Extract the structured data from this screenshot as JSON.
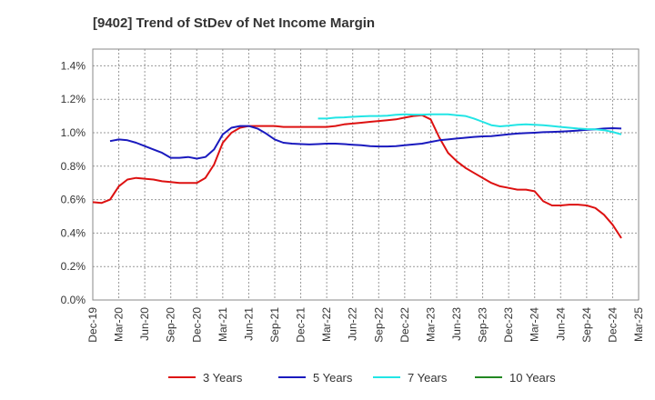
{
  "chart_data": {
    "type": "line",
    "title": "[9402]  Trend of StDev of Net Income Margin",
    "xlabel": "",
    "ylabel": "",
    "x_ticks": [
      "Dec-19",
      "Mar-20",
      "Jun-20",
      "Sep-20",
      "Dec-20",
      "Mar-21",
      "Jun-21",
      "Sep-21",
      "Dec-21",
      "Mar-22",
      "Jun-22",
      "Sep-22",
      "Dec-22",
      "Mar-23",
      "Jun-23",
      "Sep-23",
      "Dec-23",
      "Mar-24",
      "Jun-24",
      "Sep-24",
      "Dec-24",
      "Mar-25"
    ],
    "y_ticks": [
      "0.0%",
      "0.2%",
      "0.4%",
      "0.6%",
      "0.8%",
      "1.0%",
      "1.2%",
      "1.4%"
    ],
    "ylim": [
      0,
      1.5
    ],
    "grid": true,
    "legend_position": "bottom",
    "series": [
      {
        "name": "3 Years",
        "color": "#dd1111",
        "points": [
          [
            0,
            0.585
          ],
          [
            1,
            0.58
          ],
          [
            2,
            0.6
          ],
          [
            3,
            0.68
          ],
          [
            4,
            0.72
          ],
          [
            5,
            0.73
          ],
          [
            6,
            0.725
          ],
          [
            7,
            0.72
          ],
          [
            8,
            0.71
          ],
          [
            9,
            0.705
          ],
          [
            10,
            0.7
          ],
          [
            11,
            0.7
          ],
          [
            12,
            0.7
          ],
          [
            13,
            0.73
          ],
          [
            14,
            0.81
          ],
          [
            15,
            0.94
          ],
          [
            16,
            1.0
          ],
          [
            17,
            1.03
          ],
          [
            18,
            1.04
          ],
          [
            19,
            1.04
          ],
          [
            20,
            1.04
          ],
          [
            21,
            1.04
          ],
          [
            22,
            1.035
          ],
          [
            23,
            1.035
          ],
          [
            24,
            1.035
          ],
          [
            25,
            1.035
          ],
          [
            26,
            1.035
          ],
          [
            27,
            1.035
          ],
          [
            28,
            1.04
          ],
          [
            29,
            1.05
          ],
          [
            30,
            1.055
          ],
          [
            31,
            1.06
          ],
          [
            32,
            1.065
          ],
          [
            33,
            1.07
          ],
          [
            34,
            1.075
          ],
          [
            35,
            1.08
          ],
          [
            36,
            1.09
          ],
          [
            37,
            1.1
          ],
          [
            38,
            1.105
          ],
          [
            39,
            1.08
          ],
          [
            40,
            0.97
          ],
          [
            41,
            0.88
          ],
          [
            42,
            0.83
          ],
          [
            43,
            0.79
          ],
          [
            44,
            0.76
          ],
          [
            45,
            0.73
          ],
          [
            46,
            0.7
          ],
          [
            47,
            0.68
          ],
          [
            48,
            0.67
          ],
          [
            49,
            0.66
          ],
          [
            50,
            0.66
          ],
          [
            51,
            0.65
          ],
          [
            52,
            0.59
          ],
          [
            53,
            0.565
          ],
          [
            54,
            0.565
          ],
          [
            55,
            0.57
          ],
          [
            56,
            0.57
          ],
          [
            57,
            0.565
          ],
          [
            58,
            0.55
          ],
          [
            59,
            0.51
          ],
          [
            60,
            0.45
          ],
          [
            61,
            0.37
          ]
        ]
      },
      {
        "name": "5 Years",
        "color": "#1a1abe",
        "points": [
          [
            2,
            0.95
          ],
          [
            3,
            0.96
          ],
          [
            4,
            0.955
          ],
          [
            5,
            0.94
          ],
          [
            6,
            0.92
          ],
          [
            7,
            0.9
          ],
          [
            8,
            0.88
          ],
          [
            9,
            0.85
          ],
          [
            10,
            0.85
          ],
          [
            11,
            0.855
          ],
          [
            12,
            0.845
          ],
          [
            13,
            0.855
          ],
          [
            14,
            0.9
          ],
          [
            15,
            0.99
          ],
          [
            16,
            1.03
          ],
          [
            17,
            1.04
          ],
          [
            18,
            1.04
          ],
          [
            19,
            1.025
          ],
          [
            20,
            0.995
          ],
          [
            21,
            0.96
          ],
          [
            22,
            0.94
          ],
          [
            23,
            0.935
          ],
          [
            24,
            0.932
          ],
          [
            25,
            0.93
          ],
          [
            26,
            0.932
          ],
          [
            27,
            0.935
          ],
          [
            28,
            0.935
          ],
          [
            29,
            0.932
          ],
          [
            30,
            0.928
          ],
          [
            31,
            0.925
          ],
          [
            32,
            0.92
          ],
          [
            33,
            0.918
          ],
          [
            34,
            0.918
          ],
          [
            35,
            0.92
          ],
          [
            36,
            0.925
          ],
          [
            37,
            0.93
          ],
          [
            38,
            0.935
          ],
          [
            39,
            0.945
          ],
          [
            40,
            0.955
          ],
          [
            41,
            0.96
          ],
          [
            42,
            0.965
          ],
          [
            43,
            0.97
          ],
          [
            44,
            0.975
          ],
          [
            45,
            0.978
          ],
          [
            46,
            0.98
          ],
          [
            47,
            0.985
          ],
          [
            48,
            0.99
          ],
          [
            49,
            0.995
          ],
          [
            50,
            0.998
          ],
          [
            51,
            1.0
          ],
          [
            52,
            1.003
          ],
          [
            53,
            1.005
          ],
          [
            54,
            1.007
          ],
          [
            55,
            1.01
          ],
          [
            56,
            1.013
          ],
          [
            57,
            1.018
          ],
          [
            58,
            1.02
          ],
          [
            59,
            1.025
          ],
          [
            60,
            1.027
          ],
          [
            61,
            1.025
          ]
        ]
      },
      {
        "name": "7 Years",
        "color": "#22e5e5",
        "points": [
          [
            26,
            1.085
          ],
          [
            27,
            1.085
          ],
          [
            28,
            1.09
          ],
          [
            29,
            1.092
          ],
          [
            30,
            1.095
          ],
          [
            31,
            1.098
          ],
          [
            32,
            1.1
          ],
          [
            33,
            1.1
          ],
          [
            34,
            1.102
          ],
          [
            35,
            1.107
          ],
          [
            36,
            1.11
          ],
          [
            37,
            1.108
          ],
          [
            38,
            1.108
          ],
          [
            39,
            1.11
          ],
          [
            40,
            1.11
          ],
          [
            41,
            1.11
          ],
          [
            42,
            1.105
          ],
          [
            43,
            1.1
          ],
          [
            44,
            1.085
          ],
          [
            45,
            1.065
          ],
          [
            46,
            1.045
          ],
          [
            47,
            1.038
          ],
          [
            48,
            1.042
          ],
          [
            49,
            1.048
          ],
          [
            50,
            1.05
          ],
          [
            51,
            1.048
          ],
          [
            52,
            1.045
          ],
          [
            53,
            1.04
          ],
          [
            54,
            1.035
          ],
          [
            55,
            1.03
          ],
          [
            56,
            1.025
          ],
          [
            57,
            1.022
          ],
          [
            58,
            1.02
          ],
          [
            59,
            1.015
          ],
          [
            60,
            1.005
          ],
          [
            61,
            0.99
          ]
        ]
      },
      {
        "name": "10 Years",
        "color": "#228822",
        "points": []
      }
    ]
  }
}
